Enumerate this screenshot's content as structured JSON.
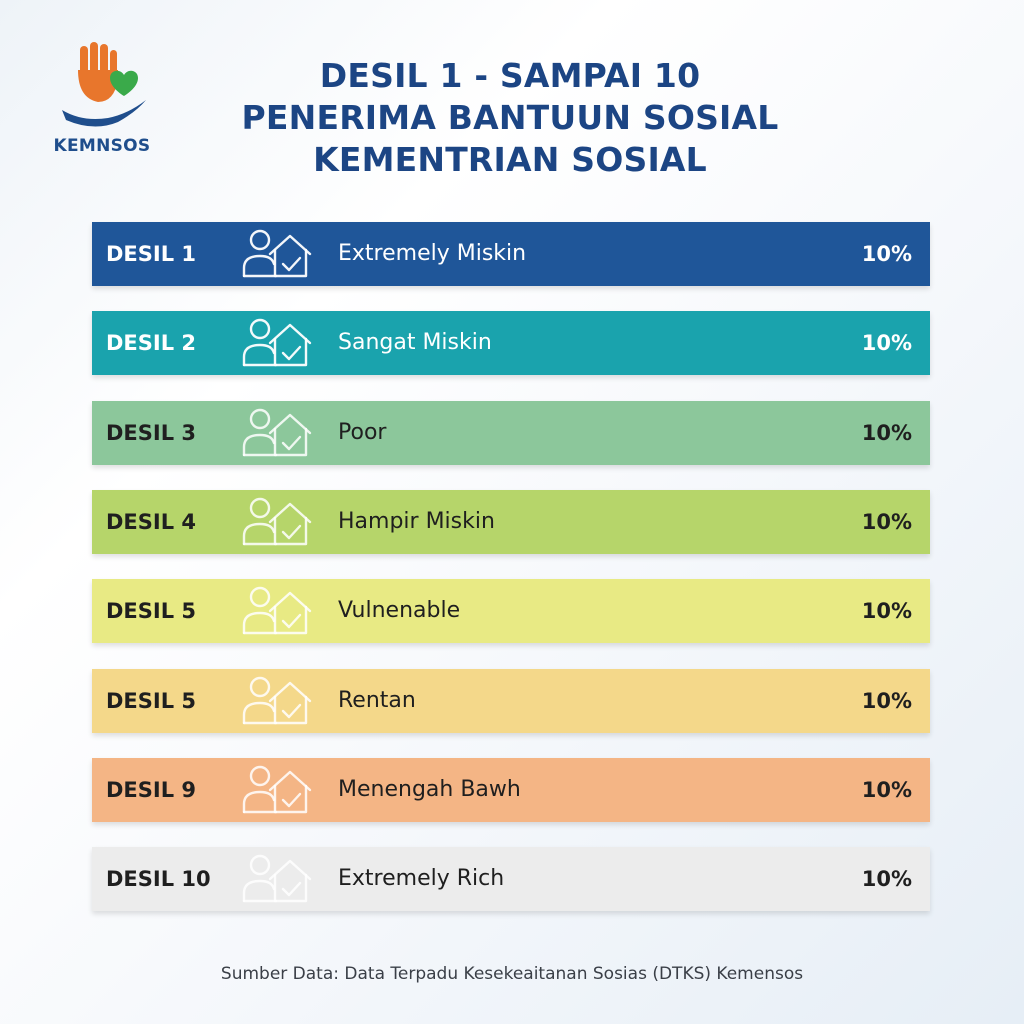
{
  "logo": {
    "text": "KEMNSOS",
    "icon": "hand-heart-logo-icon",
    "colors": {
      "hand": "#e8762c",
      "heart": "#3aaa4a",
      "palm": "#1f4e8c"
    }
  },
  "title": {
    "lines": [
      "DESIL 1 - SAMPAI 10",
      "PENERIMA BANTUUN SOSIAL",
      "KEMENTRIAN SOSIAL"
    ]
  },
  "rows": [
    {
      "code": "DESIL 1",
      "label": "Extremely Miskin",
      "percent": "10%",
      "bg": "#1f5699",
      "text": "#ffffff",
      "icon": "person-house-check-icon"
    },
    {
      "code": "DESIL 2",
      "label": "Sangat Miskin",
      "percent": "10%",
      "bg": "#1aa3ad",
      "text": "#ffffff",
      "icon": "person-house-check-icon"
    },
    {
      "code": "DESIL 3",
      "label": "Poor",
      "percent": "10%",
      "bg": "#8cc79b",
      "text": "#1f1f1f",
      "icon": "person-house-check-icon"
    },
    {
      "code": "DESIL 4",
      "label": "Hampir Miskin",
      "percent": "10%",
      "bg": "#b6d56a",
      "text": "#1f1f1f",
      "icon": "person-house-check-icon"
    },
    {
      "code": "DESIL 5",
      "label": "Vulnenable",
      "percent": "10%",
      "bg": "#e8ea84",
      "text": "#1f1f1f",
      "icon": "person-house-check-icon"
    },
    {
      "code": "DESIL 5",
      "label": "Rentan",
      "percent": "10%",
      "bg": "#f4d88a",
      "text": "#1f1f1f",
      "icon": "person-house-check-icon"
    },
    {
      "code": "DESIL 9",
      "label": "Menengah Bawh",
      "percent": "10%",
      "bg": "#f4b585",
      "text": "#1f1f1f",
      "icon": "person-house-check-icon"
    },
    {
      "code": "DESIL 10",
      "label": "Extremely Rich",
      "percent": "10%",
      "bg": "#ececec",
      "text": "#1f1f1f",
      "icon": "person-house-check-icon"
    }
  ],
  "footer": {
    "text": "Sumber Data: Data Terpadu Kesekeaitanan Sosias (DTKS) Kemensos"
  }
}
